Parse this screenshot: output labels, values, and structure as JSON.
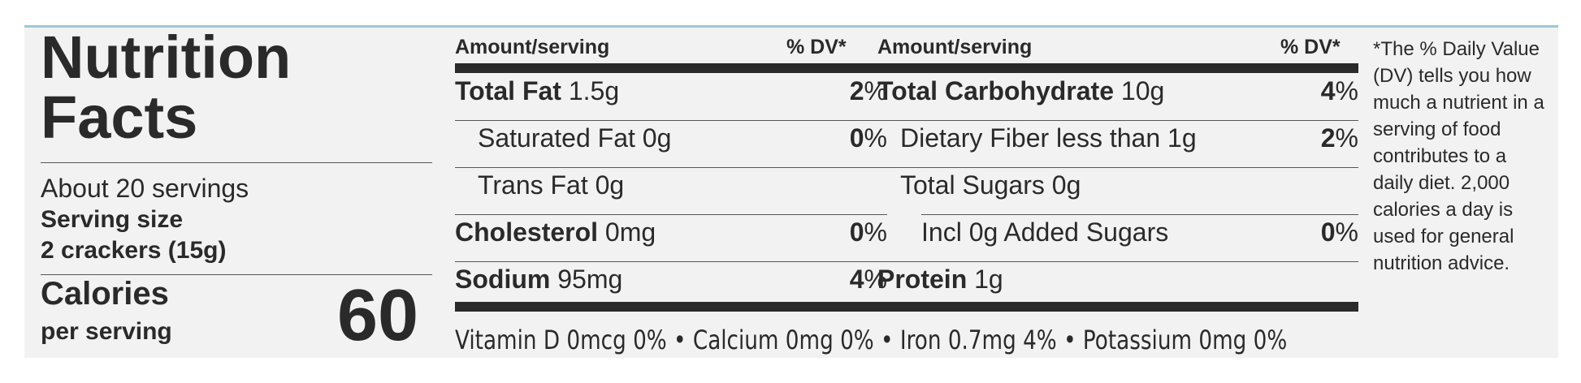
{
  "title": "Nutrition\nFacts",
  "title_line1": "Nutrition",
  "title_line2": "Facts",
  "servings_per_container": "About 20 servings",
  "serving_size_label": "Serving size",
  "serving_size_value": "2 crackers (15g)",
  "calories_label": "Calories",
  "calories_sublabel": "per serving",
  "calories_value": "60",
  "header": {
    "amount": "Amount/serving",
    "dv": "% DV*"
  },
  "left_rows": [
    {
      "name": "Total Fat",
      "amount": "1.5g",
      "dv": "2",
      "bold": true
    },
    {
      "name": "Saturated Fat",
      "amount": "0g",
      "dv": "0",
      "bold": false
    },
    {
      "name": "Trans Fat",
      "amount": "0g",
      "dv": "",
      "bold": false
    },
    {
      "name": "Cholesterol",
      "amount": "0mg",
      "dv": "0",
      "bold": true
    },
    {
      "name": "Sodium",
      "amount": "95mg",
      "dv": "4",
      "bold": true
    }
  ],
  "right_rows": [
    {
      "name": "Total Carbohydrate",
      "amount": "10g",
      "dv": "4",
      "bold": true
    },
    {
      "name": "Dietary Fiber",
      "amount": "less than 1g",
      "dv": "2",
      "bold": false
    },
    {
      "name": "Total Sugars",
      "amount": "0g",
      "dv": "",
      "bold": false
    },
    {
      "name": "Incl 0g Added Sugars",
      "amount": "",
      "dv": "0",
      "bold": false
    },
    {
      "name": "Protein",
      "amount": "1g",
      "dv": "",
      "bold": true
    }
  ],
  "percent_sign": "%",
  "vitamins": "Vitamin D 0mcg 0% • Calcium 0mg 0% • Iron 0.7mg 4% • Potassium 0mg 0%",
  "footnote": "*The % Daily Value (DV) tells you how much a nutrient in a serving of food contributes to a daily diet. 2,000 calories a day is used for general nutrition advice.",
  "colors": {
    "panel": "#f2f2f2",
    "ink": "#2a2a2a",
    "top_border": "#9cc8d8"
  }
}
